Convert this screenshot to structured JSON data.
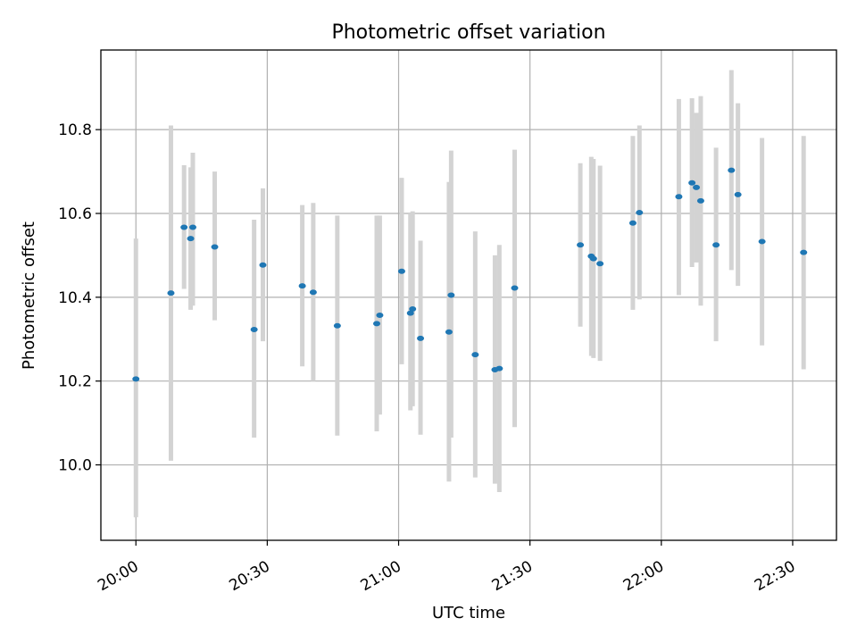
{
  "chart_data": {
    "type": "scatter",
    "title": "Photometric offset variation",
    "xlabel": "UTC time",
    "ylabel": "Photometric offset",
    "x_tick_labels": [
      "20:00",
      "20:30",
      "21:00",
      "21:30",
      "22:00",
      "22:30"
    ],
    "x_ticks": [
      "20:00",
      "20:30",
      "21:00",
      "21:30",
      "22:00",
      "22:30"
    ],
    "y_tick_labels": [
      "10.0",
      "10.2",
      "10.4",
      "10.6",
      "10.8"
    ],
    "y_ticks": [
      10.0,
      10.2,
      10.4,
      10.6,
      10.8
    ],
    "xlim": [
      "19:52",
      "22:40"
    ],
    "ylim": [
      9.82,
      10.99
    ],
    "grid": true,
    "legend": "none",
    "colors": {
      "points": "#1f77b4",
      "error_bars": "#d3d3d3"
    },
    "points": [
      {
        "x": "20:00",
        "y": 10.205,
        "lo": 9.875,
        "hi": 10.54
      },
      {
        "x": "20:08",
        "y": 10.41,
        "lo": 10.01,
        "hi": 10.81
      },
      {
        "x": "20:11",
        "y": 10.567,
        "lo": 10.42,
        "hi": 10.715
      },
      {
        "x": "20:12.5",
        "y": 10.54,
        "lo": 10.37,
        "hi": 10.71
      },
      {
        "x": "20:13",
        "y": 10.567,
        "lo": 10.38,
        "hi": 10.745
      },
      {
        "x": "20:18",
        "y": 10.52,
        "lo": 10.345,
        "hi": 10.7
      },
      {
        "x": "20:27",
        "y": 10.323,
        "lo": 10.065,
        "hi": 10.585
      },
      {
        "x": "20:29",
        "y": 10.477,
        "lo": 10.295,
        "hi": 10.66
      },
      {
        "x": "20:38",
        "y": 10.427,
        "lo": 10.235,
        "hi": 10.62
      },
      {
        "x": "20:40.5",
        "y": 10.412,
        "lo": 10.2,
        "hi": 10.625
      },
      {
        "x": "20:46",
        "y": 10.332,
        "lo": 10.07,
        "hi": 10.595
      },
      {
        "x": "20:55",
        "y": 10.337,
        "lo": 10.08,
        "hi": 10.595
      },
      {
        "x": "20:55.7",
        "y": 10.357,
        "lo": 10.12,
        "hi": 10.595
      },
      {
        "x": "21:00.7",
        "y": 10.462,
        "lo": 10.24,
        "hi": 10.685
      },
      {
        "x": "21:02.7",
        "y": 10.362,
        "lo": 10.13,
        "hi": 10.6
      },
      {
        "x": "21:03.2",
        "y": 10.372,
        "lo": 10.14,
        "hi": 10.605
      },
      {
        "x": "21:05",
        "y": 10.302,
        "lo": 10.072,
        "hi": 10.535
      },
      {
        "x": "21:11.5",
        "y": 10.317,
        "lo": 9.96,
        "hi": 10.675
      },
      {
        "x": "21:12",
        "y": 10.405,
        "lo": 10.065,
        "hi": 10.75
      },
      {
        "x": "21:17.5",
        "y": 10.263,
        "lo": 9.97,
        "hi": 10.557
      },
      {
        "x": "21:22",
        "y": 10.227,
        "lo": 9.955,
        "hi": 10.5
      },
      {
        "x": "21:23",
        "y": 10.23,
        "lo": 9.935,
        "hi": 10.525
      },
      {
        "x": "21:26.5",
        "y": 10.422,
        "lo": 10.09,
        "hi": 10.752
      },
      {
        "x": "21:41.5",
        "y": 10.525,
        "lo": 10.33,
        "hi": 10.72
      },
      {
        "x": "21:44",
        "y": 10.498,
        "lo": 10.26,
        "hi": 10.735
      },
      {
        "x": "21:44.5",
        "y": 10.492,
        "lo": 10.255,
        "hi": 10.73
      },
      {
        "x": "21:46",
        "y": 10.48,
        "lo": 10.248,
        "hi": 10.714
      },
      {
        "x": "21:53.5",
        "y": 10.577,
        "lo": 10.37,
        "hi": 10.785
      },
      {
        "x": "21:55",
        "y": 10.602,
        "lo": 10.395,
        "hi": 10.81
      },
      {
        "x": "22:04",
        "y": 10.64,
        "lo": 10.405,
        "hi": 10.873
      },
      {
        "x": "22:07",
        "y": 10.673,
        "lo": 10.472,
        "hi": 10.875
      },
      {
        "x": "22:08",
        "y": 10.662,
        "lo": 10.483,
        "hi": 10.84
      },
      {
        "x": "22:09",
        "y": 10.63,
        "lo": 10.38,
        "hi": 10.88
      },
      {
        "x": "22:12.5",
        "y": 10.525,
        "lo": 10.295,
        "hi": 10.757
      },
      {
        "x": "22:16",
        "y": 10.703,
        "lo": 10.465,
        "hi": 10.942
      },
      {
        "x": "22:17.5",
        "y": 10.645,
        "lo": 10.427,
        "hi": 10.863
      },
      {
        "x": "22:23",
        "y": 10.533,
        "lo": 10.285,
        "hi": 10.78
      },
      {
        "x": "22:32.5",
        "y": 10.507,
        "lo": 10.228,
        "hi": 10.785
      }
    ]
  }
}
